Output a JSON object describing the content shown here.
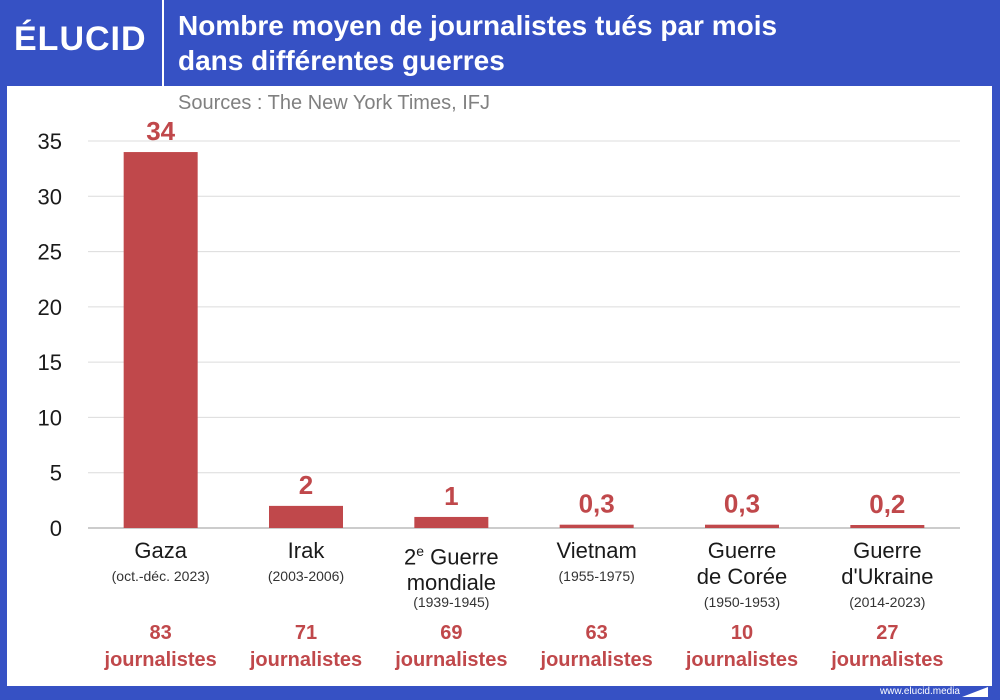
{
  "brand": {
    "name": "ÉLUCID",
    "url": "www.elucid.media"
  },
  "header": {
    "title_line1": "Nombre moyen de journalistes tués par mois",
    "title_line2": "dans différentes guerres"
  },
  "sources": "Sources : The New York Times, IFJ",
  "colors": {
    "bar": "#c0484b",
    "frame": "#3651c4"
  },
  "chart_data": {
    "type": "bar",
    "title": "Nombre moyen de journalistes tués par mois dans différentes guerres",
    "ylim": [
      0,
      35
    ],
    "yticks": [
      "0",
      "5",
      "10",
      "15",
      "20",
      "25",
      "30",
      "35"
    ],
    "grid": true,
    "categories": [
      {
        "name_lines": [
          "Gaza"
        ],
        "sup": "",
        "period": "(oct.-déc. 2023)",
        "value": 34,
        "label": "34",
        "count": "83",
        "count_unit": "journalistes"
      },
      {
        "name_lines": [
          "Irak"
        ],
        "sup": "",
        "period": "(2003-2006)",
        "value": 2,
        "label": "2",
        "count": "71",
        "count_unit": "journalistes"
      },
      {
        "name_lines": [
          "2e Guerre",
          "mondiale"
        ],
        "sup": "e",
        "period": "(1939-1945)",
        "value": 1,
        "label": "1",
        "count": "69",
        "count_unit": "journalistes"
      },
      {
        "name_lines": [
          "Vietnam"
        ],
        "sup": "",
        "period": "(1955-1975)",
        "value": 0.3,
        "label": "0,3",
        "count": "63",
        "count_unit": "journalistes"
      },
      {
        "name_lines": [
          "Guerre",
          "de Corée"
        ],
        "sup": "",
        "period": "(1950-1953)",
        "value": 0.3,
        "label": "0,3",
        "count": "10",
        "count_unit": "journalistes"
      },
      {
        "name_lines": [
          "Guerre",
          "d'Ukraine"
        ],
        "sup": "",
        "period": "(2014-2023)",
        "value": 0.2,
        "label": "0,2",
        "count": "27",
        "count_unit": "journalistes"
      }
    ]
  }
}
